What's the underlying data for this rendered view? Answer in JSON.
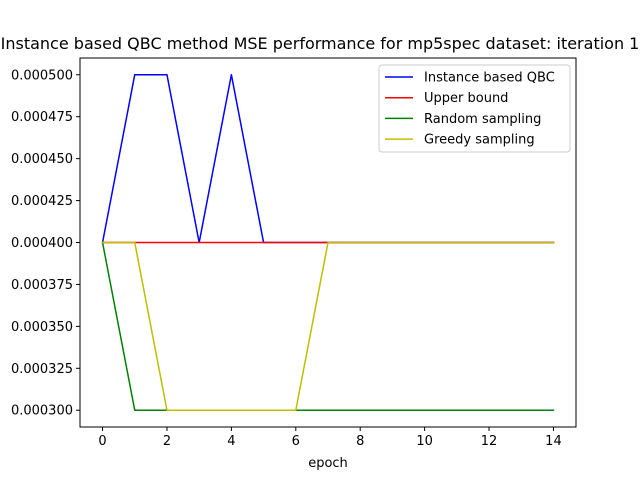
{
  "chart_data": {
    "type": "line",
    "title": "Instance based QBC method MSE performance for mp5spec dataset: iteration 1",
    "xlabel": "epoch",
    "ylabel": "",
    "xlim": [
      -0.7,
      14.7
    ],
    "ylim": [
      0.00029,
      0.00051
    ],
    "x_ticks": [
      0,
      2,
      4,
      6,
      8,
      10,
      12,
      14
    ],
    "y_ticks": [
      0.0003,
      0.000325,
      0.00035,
      0.000375,
      0.0004,
      0.000425,
      0.00045,
      0.000475,
      0.0005
    ],
    "x_tick_labels": [
      "0",
      "2",
      "4",
      "6",
      "8",
      "10",
      "12",
      "14"
    ],
    "y_tick_labels": [
      "0.000300",
      "0.000325",
      "0.000350",
      "0.000375",
      "0.000400",
      "0.000425",
      "0.000450",
      "0.000475",
      "0.000500"
    ],
    "x": [
      0,
      1,
      2,
      3,
      4,
      5,
      6,
      7,
      8,
      9,
      10,
      11,
      12,
      13,
      14
    ],
    "series": [
      {
        "name": "Instance based QBC",
        "color": "#0000ff",
        "values": [
          0.0004,
          0.0005,
          0.0005,
          0.0004,
          0.0005,
          0.0004,
          0.0004,
          0.0004,
          0.0004,
          0.0004,
          0.0004,
          0.0004,
          0.0004,
          0.0004,
          0.0004
        ]
      },
      {
        "name": "Upper bound",
        "color": "#ff0000",
        "values": [
          0.0004,
          0.0004,
          0.0004,
          0.0004,
          0.0004,
          0.0004,
          0.0004,
          0.0004,
          0.0004,
          0.0004,
          0.0004,
          0.0004,
          0.0004,
          0.0004,
          0.0004
        ]
      },
      {
        "name": "Random sampling",
        "color": "#008000",
        "values": [
          0.0004,
          0.0003,
          0.0003,
          0.0003,
          0.0003,
          0.0003,
          0.0003,
          0.0003,
          0.0003,
          0.0003,
          0.0003,
          0.0003,
          0.0003,
          0.0003,
          0.0003
        ]
      },
      {
        "name": "Greedy sampling",
        "color": "#bfbf00",
        "values": [
          0.0004,
          0.0004,
          0.0003,
          0.0003,
          0.0003,
          0.0003,
          0.0003,
          0.0004,
          0.0004,
          0.0004,
          0.0004,
          0.0004,
          0.0004,
          0.0004,
          0.0004
        ]
      }
    ],
    "legend_position": "upper-right",
    "grid": false
  }
}
